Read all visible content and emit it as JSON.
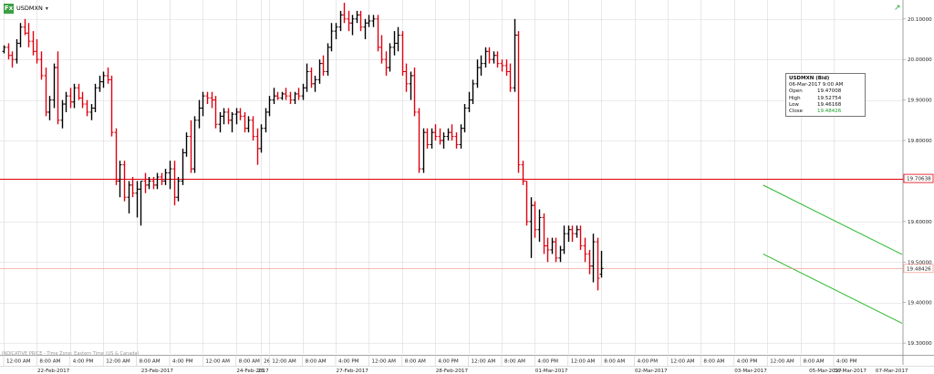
{
  "header": {
    "icon_label": "Fx",
    "symbol": "USDMXN",
    "dropdown_icon": "chevron-down-icon",
    "corner_icon": "trend-arrow-icon"
  },
  "footnote": "INDICATIVE PRICE - Time Zone: Eastern Time (US & Canada)",
  "tooltip": {
    "title": "USDMXN (Bid)",
    "datetime": "06-Mar-2017 9:00 AM",
    "rows": [
      {
        "label": "Open",
        "value": "19.47008"
      },
      {
        "label": "High",
        "value": "19.52754"
      },
      {
        "label": "Low",
        "value": "19.46168"
      },
      {
        "label": "Close",
        "value": "19.48426"
      }
    ]
  },
  "colors": {
    "up": "#000000",
    "down": "#e0000f",
    "grid": "#d8d8d8",
    "resistance_line": "#e0000f",
    "last_price_line": "#f2a39a",
    "channel": "#2eb82e",
    "close_text": "#1a9e2a"
  },
  "chart_data": {
    "type": "ohlc",
    "title": "USDMXN",
    "series_name": "USDMXN (Bid)",
    "y_axis": {
      "position": "right",
      "ylim": [
        19.28,
        20.14
      ],
      "ticks": [
        "20.10000",
        "20.00000",
        "19.90000",
        "19.80000",
        "19.60000",
        "19.50000",
        "19.40000",
        "19.30000"
      ]
    },
    "y_tick_values": [
      20.1,
      20.0,
      19.9,
      19.8,
      19.6,
      19.5,
      19.4,
      19.3
    ],
    "price_labels": [
      {
        "name": "level",
        "text": "19.70638",
        "value": 19.70638
      },
      {
        "name": "last",
        "text": "19.48426",
        "value": 19.48426
      }
    ],
    "x_axis": {
      "time_ticks": [
        "12:00 AM",
        "8:00 AM",
        "4:00 PM",
        "12:00 AM",
        "8:00 AM",
        "4:00 PM",
        "12:00 AM",
        "8:00 AM",
        "26",
        "12:00 AM",
        "8:00 AM",
        "4:00 PM",
        "12:00 AM",
        "8:00 AM",
        "4:00 PM",
        "12:00 AM",
        "8:00 AM",
        "4:00 PM",
        "12:00 AM",
        "8:00 AM",
        "4:00 PM",
        "12:00 AM",
        "8:00 AM",
        "4:00 PM",
        "12:00 AM",
        "8:00 AM",
        "4:00 PM"
      ],
      "dates": [
        "22-Feb-2017",
        "23-Feb-2017",
        "24-Feb-2017",
        "26",
        "27-Feb-2017",
        "28-Feb-2017",
        "01-Mar-2017",
        "02-Mar-2017",
        "03-Mar-2017",
        "05-Mar-2017",
        "06-Mar-2017",
        "07-Mar-2017"
      ]
    },
    "x_tick_slots": [
      0,
      8,
      16,
      24,
      32,
      40,
      48,
      56,
      62,
      64,
      72,
      80,
      88,
      96,
      104,
      112,
      120,
      128,
      136,
      144,
      152,
      160,
      168,
      176,
      184,
      192,
      200
    ],
    "date_slots": [
      12,
      37,
      60,
      62,
      84,
      108,
      132,
      156,
      180,
      198,
      204,
      214
    ],
    "slot_count": 216,
    "hlines": [
      {
        "name": "level",
        "value": 19.70638
      },
      {
        "name": "last",
        "value": 19.48426
      }
    ],
    "channel": {
      "upper": {
        "slots": [
          183,
          226
        ],
        "values": [
          19.69,
          19.47
        ]
      },
      "lower": {
        "slots": [
          183,
          226
        ],
        "values": [
          19.52,
          19.3
        ]
      }
    },
    "ohlc": [
      [
        20.02,
        20.035,
        20.015,
        20.03
      ],
      [
        20.03,
        20.04,
        20.0,
        20.01
      ],
      [
        20.01,
        20.02,
        19.98,
        20.0
      ],
      [
        20.0,
        20.05,
        19.99,
        20.04
      ],
      [
        20.04,
        20.09,
        20.03,
        20.08
      ],
      [
        20.08,
        20.1,
        20.06,
        20.065
      ],
      [
        20.065,
        20.09,
        20.03,
        20.045
      ],
      [
        20.045,
        20.07,
        20.01,
        20.02
      ],
      [
        20.02,
        20.05,
        19.99,
        20.0
      ],
      [
        20.0,
        20.02,
        19.95,
        19.96
      ],
      [
        19.96,
        19.98,
        19.86,
        19.87
      ],
      [
        19.87,
        19.91,
        19.85,
        19.9
      ],
      [
        19.9,
        19.99,
        19.88,
        19.98
      ],
      [
        19.98,
        20.02,
        19.84,
        19.85
      ],
      [
        19.85,
        19.9,
        19.83,
        19.89
      ],
      [
        19.89,
        19.92,
        19.87,
        19.91
      ],
      [
        19.91,
        19.93,
        19.88,
        19.895
      ],
      [
        19.895,
        19.94,
        19.88,
        19.93
      ],
      [
        19.93,
        19.94,
        19.9,
        19.905
      ],
      [
        19.905,
        19.92,
        19.88,
        19.89
      ],
      [
        19.89,
        19.9,
        19.86,
        19.87
      ],
      [
        19.87,
        19.89,
        19.85,
        19.88
      ],
      [
        19.88,
        19.94,
        19.87,
        19.93
      ],
      [
        19.93,
        19.96,
        19.92,
        19.945
      ],
      [
        19.945,
        19.97,
        19.93,
        19.96
      ],
      [
        19.96,
        19.98,
        19.94,
        19.95
      ],
      [
        19.95,
        19.96,
        19.81,
        19.82
      ],
      [
        19.82,
        19.83,
        19.69,
        19.7
      ],
      [
        19.7,
        19.75,
        19.66,
        19.74
      ],
      [
        19.74,
        19.75,
        19.65,
        19.66
      ],
      [
        19.66,
        19.7,
        19.62,
        19.69
      ],
      [
        19.69,
        19.71,
        19.66,
        19.67
      ],
      [
        19.67,
        19.7,
        19.61,
        19.68
      ],
      [
        19.68,
        19.7,
        19.59,
        19.7
      ],
      [
        19.7,
        19.72,
        19.67,
        19.69
      ],
      [
        19.69,
        19.71,
        19.68,
        19.7
      ],
      [
        19.7,
        19.71,
        19.68,
        19.69
      ],
      [
        19.69,
        19.72,
        19.68,
        19.71
      ],
      [
        19.71,
        19.72,
        19.69,
        19.7
      ],
      [
        19.7,
        19.73,
        19.69,
        19.72
      ],
      [
        19.72,
        19.75,
        19.68,
        19.73
      ],
      [
        19.73,
        19.75,
        19.64,
        19.66
      ],
      [
        19.66,
        19.71,
        19.65,
        19.7
      ],
      [
        19.7,
        19.78,
        19.69,
        19.77
      ],
      [
        19.77,
        19.82,
        19.76,
        19.81
      ],
      [
        19.81,
        19.85,
        19.72,
        19.73
      ],
      [
        19.73,
        19.86,
        19.72,
        19.85
      ],
      [
        19.85,
        19.9,
        19.83,
        19.88
      ],
      [
        19.88,
        19.92,
        19.86,
        19.91
      ],
      [
        19.91,
        19.92,
        19.89,
        19.905
      ],
      [
        19.905,
        19.92,
        19.88,
        19.9
      ],
      [
        19.9,
        19.91,
        19.83,
        19.84
      ],
      [
        19.84,
        19.87,
        19.82,
        19.86
      ],
      [
        19.86,
        19.88,
        19.84,
        19.87
      ],
      [
        19.87,
        19.88,
        19.84,
        19.85
      ],
      [
        19.85,
        19.87,
        19.82,
        19.865
      ],
      [
        19.865,
        19.88,
        19.84,
        19.87
      ],
      [
        19.87,
        19.88,
        19.85,
        19.86
      ],
      [
        19.86,
        19.87,
        19.82,
        19.83
      ],
      [
        19.83,
        19.86,
        19.82,
        19.85
      ],
      [
        19.85,
        19.86,
        19.8,
        19.81
      ],
      [
        19.81,
        19.83,
        19.74,
        19.78
      ],
      [
        19.78,
        19.84,
        19.77,
        19.83
      ],
      [
        19.83,
        19.88,
        19.82,
        19.87
      ],
      [
        19.87,
        19.91,
        19.86,
        19.9
      ],
      [
        19.9,
        19.93,
        19.89,
        19.91
      ],
      [
        19.91,
        19.92,
        19.9,
        19.905
      ],
      [
        19.905,
        19.92,
        19.9,
        19.915
      ],
      [
        19.915,
        19.93,
        19.9,
        19.91
      ],
      [
        19.91,
        19.92,
        19.89,
        19.9
      ],
      [
        19.9,
        19.92,
        19.89,
        19.915
      ],
      [
        19.915,
        19.93,
        19.9,
        19.91
      ],
      [
        19.91,
        19.94,
        19.9,
        19.93
      ],
      [
        19.93,
        19.99,
        19.92,
        19.97
      ],
      [
        19.97,
        19.98,
        19.93,
        19.94
      ],
      [
        19.94,
        19.96,
        19.92,
        19.95
      ],
      [
        19.95,
        20.0,
        19.94,
        19.99
      ],
      [
        19.99,
        20.01,
        19.96,
        19.97
      ],
      [
        19.97,
        20.04,
        19.96,
        20.03
      ],
      [
        20.03,
        20.09,
        20.02,
        20.07
      ],
      [
        20.07,
        20.09,
        20.05,
        20.08
      ],
      [
        20.08,
        20.12,
        20.07,
        20.11
      ],
      [
        20.11,
        20.14,
        20.09,
        20.1
      ],
      [
        20.1,
        20.12,
        20.07,
        20.09
      ],
      [
        20.09,
        20.11,
        20.06,
        20.1
      ],
      [
        20.1,
        20.12,
        20.09,
        20.11
      ],
      [
        20.11,
        20.12,
        20.07,
        20.08
      ],
      [
        20.08,
        20.1,
        20.05,
        20.09
      ],
      [
        20.09,
        20.11,
        20.08,
        20.095
      ],
      [
        20.095,
        20.11,
        20.08,
        20.1
      ],
      [
        20.1,
        20.11,
        20.02,
        20.03
      ],
      [
        20.03,
        20.06,
        19.99,
        20.0
      ],
      [
        20.0,
        20.02,
        19.96,
        19.98
      ],
      [
        19.98,
        20.04,
        19.97,
        20.03
      ],
      [
        20.03,
        20.07,
        20.01,
        20.04
      ],
      [
        20.04,
        20.08,
        20.02,
        20.06
      ],
      [
        20.06,
        20.07,
        19.96,
        19.97
      ],
      [
        19.97,
        19.99,
        19.92,
        19.94
      ],
      [
        19.94,
        19.97,
        19.9,
        19.96
      ],
      [
        19.96,
        19.98,
        19.86,
        19.87
      ],
      [
        19.87,
        19.88,
        19.72,
        19.73
      ],
      [
        19.73,
        19.83,
        19.72,
        19.82
      ],
      [
        19.82,
        19.83,
        19.78,
        19.79
      ],
      [
        19.79,
        19.83,
        19.78,
        19.82
      ],
      [
        19.82,
        19.84,
        19.8,
        19.81
      ],
      [
        19.81,
        19.83,
        19.79,
        19.8
      ],
      [
        19.8,
        19.82,
        19.78,
        19.81
      ],
      [
        19.81,
        19.83,
        19.8,
        19.82
      ],
      [
        19.82,
        19.84,
        19.8,
        19.81
      ],
      [
        19.81,
        19.82,
        19.78,
        19.79
      ],
      [
        19.79,
        19.84,
        19.78,
        19.83
      ],
      [
        19.83,
        19.89,
        19.82,
        19.88
      ],
      [
        19.88,
        19.92,
        19.87,
        19.9
      ],
      [
        19.9,
        19.95,
        19.89,
        19.94
      ],
      [
        19.94,
        20.0,
        19.93,
        19.98
      ],
      [
        19.98,
        20.01,
        19.96,
        19.99
      ],
      [
        19.99,
        20.03,
        19.98,
        20.02
      ],
      [
        20.02,
        20.03,
        19.99,
        20.0
      ],
      [
        20.0,
        20.02,
        19.99,
        20.01
      ],
      [
        20.01,
        20.02,
        19.98,
        19.99
      ],
      [
        19.99,
        20.0,
        19.97,
        19.985
      ],
      [
        19.985,
        20.0,
        19.96,
        19.97
      ],
      [
        19.97,
        19.99,
        19.92,
        19.93
      ],
      [
        19.93,
        20.1,
        19.92,
        20.06
      ],
      [
        20.06,
        20.07,
        19.72,
        19.74
      ],
      [
        19.74,
        19.75,
        19.69,
        19.7
      ],
      [
        19.7,
        19.7,
        19.59,
        19.6
      ],
      [
        19.6,
        19.66,
        19.51,
        19.64
      ],
      [
        19.64,
        19.65,
        19.56,
        19.58
      ],
      [
        19.58,
        19.63,
        19.55,
        19.61
      ],
      [
        19.61,
        19.62,
        19.52,
        19.54
      ],
      [
        19.54,
        19.56,
        19.5,
        19.53
      ],
      [
        19.53,
        19.56,
        19.52,
        19.55
      ],
      [
        19.55,
        19.56,
        19.5,
        19.51
      ],
      [
        19.51,
        19.54,
        19.5,
        19.53
      ],
      [
        19.53,
        19.59,
        19.52,
        19.57
      ],
      [
        19.57,
        19.59,
        19.55,
        19.58
      ],
      [
        19.58,
        19.59,
        19.55,
        19.57
      ],
      [
        19.57,
        19.59,
        19.56,
        19.58
      ],
      [
        19.58,
        19.59,
        19.53,
        19.54
      ],
      [
        19.54,
        19.56,
        19.5,
        19.52
      ],
      [
        19.52,
        19.53,
        19.47,
        19.49
      ],
      [
        19.49,
        19.57,
        19.45,
        19.55
      ],
      [
        19.55,
        19.56,
        19.43,
        19.46
      ],
      [
        19.47008,
        19.52754,
        19.46168,
        19.48426
      ]
    ]
  }
}
